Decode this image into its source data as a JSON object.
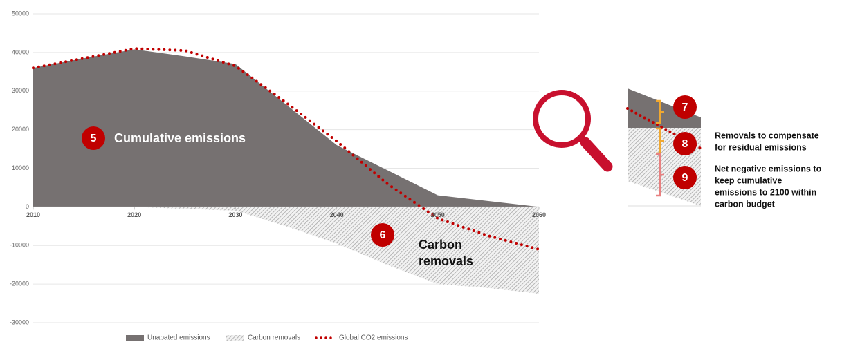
{
  "chart_data": {
    "type": "area",
    "x": [
      2010,
      2015,
      2020,
      2025,
      2030,
      2035,
      2040,
      2045,
      2050,
      2055,
      2060
    ],
    "xlim": [
      2010,
      2060
    ],
    "xticks": [
      2010,
      2020,
      2030,
      2040,
      2050,
      2060
    ],
    "ylim": [
      -30000,
      50000
    ],
    "yticks": [
      -30000,
      -20000,
      -10000,
      0,
      10000,
      20000,
      30000,
      40000,
      50000
    ],
    "grid": true,
    "series": [
      {
        "name": "Unabated emissions",
        "color": "#767171",
        "style": "solid",
        "values": [
          36000,
          38500,
          40800,
          39000,
          37000,
          26500,
          16000,
          9500,
          3000,
          1500,
          0
        ]
      },
      {
        "name": "Carbon removals",
        "color": "#a6a6a6",
        "style": "hatch",
        "values": [
          0,
          0,
          0,
          -500,
          -1000,
          -5000,
          -9500,
          -15000,
          -20000,
          -21000,
          -22500
        ]
      },
      {
        "name": "Global CO2 emissions",
        "color": "#c00000",
        "style": "dotted",
        "values": [
          36000,
          38500,
          41000,
          40500,
          36500,
          27000,
          17000,
          6000,
          -3000,
          -7500,
          -11000
        ]
      }
    ],
    "annotations": {
      "cumulative": {
        "badge": "5",
        "text": "Cumulative emissions"
      },
      "removals": {
        "badge": "6",
        "lines": [
          "Carbon",
          "removals"
        ]
      },
      "residual": {
        "badge": "7"
      },
      "compensate": {
        "badge": "8",
        "lines": [
          "Removals to compensate",
          "for residual emissions"
        ]
      },
      "net_negative": {
        "badge": "9",
        "lines": [
          "Net negative emissions to",
          "keep cumulative",
          "emissions to 2100 within",
          "carbon budget"
        ]
      }
    }
  }
}
